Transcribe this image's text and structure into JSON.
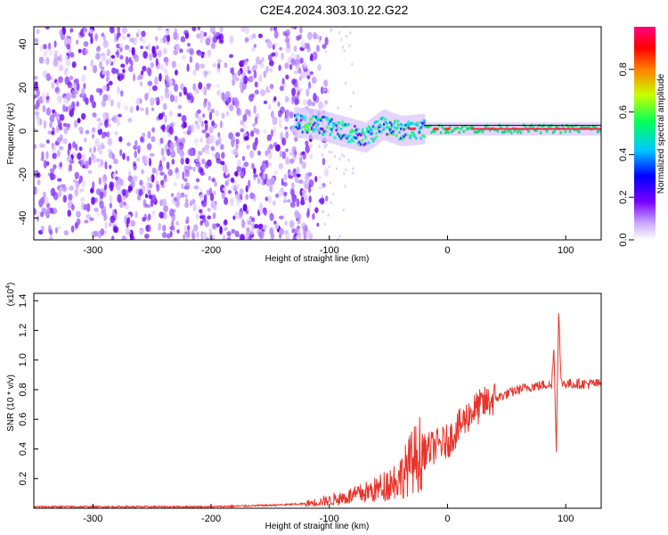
{
  "title": "C2E4.2024.303.10.22.G22",
  "chart_data": [
    {
      "type": "heatmap",
      "panel": "top",
      "xlabel": "Height of straight line (km)",
      "ylabel": "Frequency (Hz)",
      "xlim": [
        -350,
        130
      ],
      "ylim": [
        -50,
        48
      ],
      "xticks": [
        -300,
        -200,
        -100,
        0,
        100
      ],
      "yticks": [
        -40,
        -20,
        0,
        20,
        40
      ],
      "colorbar": {
        "label": "Normalized spectral amplitude",
        "range": [
          0,
          1
        ],
        "ticks": [
          "0.0",
          "0.2",
          "0.4",
          "0.6",
          "0.8"
        ],
        "colors": [
          "#ffffff",
          "#c9a6ff",
          "#7a00ff",
          "#0000ff",
          "#00c8ff",
          "#00ff60",
          "#c8ff00",
          "#ff8000",
          "#ff0000",
          "#ff0080"
        ]
      },
      "features": {
        "noise_region_x": [
          -350,
          -110
        ],
        "noise_frequency_range": [
          -50,
          48
        ],
        "signal_center_frequency": 1,
        "signal_start_x": -130,
        "signal_track": [
          {
            "x": -130,
            "y": 4
          },
          {
            "x": -110,
            "y": 3
          },
          {
            "x": -90,
            "y": 0
          },
          {
            "x": -70,
            "y": -3
          },
          {
            "x": -55,
            "y": 3
          },
          {
            "x": -40,
            "y": 0
          },
          {
            "x": -20,
            "y": 1
          },
          {
            "x": 0,
            "y": 1
          },
          {
            "x": 50,
            "y": 1
          },
          {
            "x": 90,
            "y": 1
          },
          {
            "x": 130,
            "y": 1
          }
        ]
      }
    },
    {
      "type": "line",
      "panel": "bottom",
      "xlabel": "Height of straight line (km)",
      "ylabel": "SNR (10 * v/v)",
      "scale_label": "(x10^4)",
      "scale_base": "(x10",
      "scale_exp": "4",
      "xlim": [
        -350,
        130
      ],
      "ylim": [
        0,
        1.45
      ],
      "xticks": [
        -300,
        -200,
        -100,
        0,
        100
      ],
      "yticks": [
        "0.2",
        "0.4",
        "0.6",
        "0.8",
        "1.0",
        "1.2",
        "1.4"
      ],
      "series_color": "#e8342b",
      "series": [
        {
          "x": [
            -350,
            -300,
            -250,
            -200,
            -150,
            -120,
            -100,
            -80,
            -60,
            -40,
            -30,
            -20,
            -10,
            0,
            10,
            20,
            30,
            40,
            50,
            60,
            70,
            80,
            85,
            88,
            90,
            92,
            94,
            96,
            100,
            110,
            120,
            130
          ],
          "values": [
            0.01,
            0.01,
            0.01,
            0.01,
            0.02,
            0.03,
            0.05,
            0.08,
            0.12,
            0.2,
            0.3,
            0.38,
            0.42,
            0.45,
            0.55,
            0.65,
            0.7,
            0.74,
            0.77,
            0.8,
            0.82,
            0.83,
            0.84,
            0.82,
            1.1,
            0.4,
            1.35,
            0.85,
            0.84,
            0.84,
            0.84,
            0.84
          ]
        }
      ]
    }
  ]
}
